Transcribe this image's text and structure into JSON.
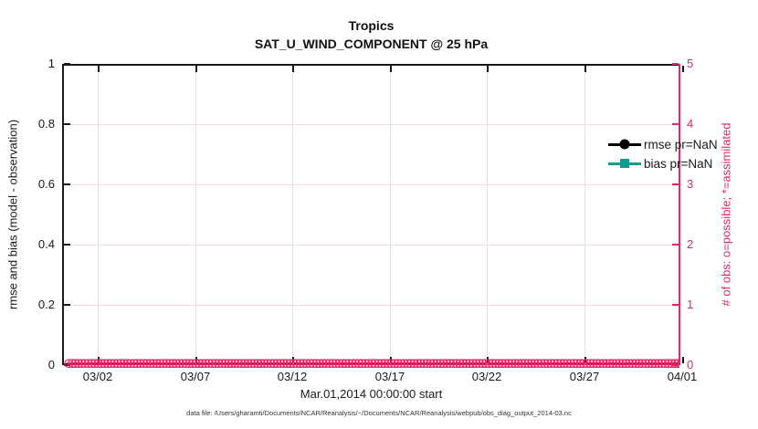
{
  "figure": {
    "title": "Tropics",
    "subtitle": "SAT_U_WIND_COMPONENT @ 25 hPa",
    "xlabel": "Mar.01,2014 00:00:00 start",
    "ylabel_left": "rmse and bias (model - observation)",
    "ylabel_right": "# of obs: o=possible; *=assimilated",
    "footnote": "data file: /Users/gharamti/Documents/NCAR/Reanalysis/~/Documents/NCAR/Reanalysis/webpub/obs_diag_output_2014-03.nc"
  },
  "colors": {
    "axis_black": "#1a1a1a",
    "obs_pink": "#e12765",
    "grid_pink": "#f6d9e3",
    "grid_gray": "#e2e2e2",
    "bias_teal": "#0f9d92",
    "rmse_black": "#000000"
  },
  "legend": {
    "items": [
      {
        "label": "rmse pr=NaN",
        "marker": "circle",
        "color": "#000000"
      },
      {
        "label": "bias pr=NaN",
        "marker": "square",
        "color": "#0f9d92"
      }
    ]
  },
  "chart_data": {
    "type": "line",
    "title": "Tropics",
    "subtitle": "SAT_U_WIND_COMPONENT @ 25 hPa",
    "xlabel": "Mar.01,2014 00:00:00 start",
    "ylabel_left": "rmse and bias (model - observation)",
    "ylabel_right": "# of obs: o=possible; *=assimilated",
    "x_range": [
      "03/01",
      "04/01"
    ],
    "x_tick_labels": [
      "03/02",
      "03/07",
      "03/12",
      "03/17",
      "03/22",
      "03/27",
      "04/01"
    ],
    "y_left_ticks": [
      "0",
      "0.2",
      "0.4",
      "0.6",
      "0.8",
      "1"
    ],
    "y_right_ticks": [
      "0",
      "1",
      "2",
      "3",
      "4",
      "5"
    ],
    "ylim_left": [
      0,
      1
    ],
    "ylim_right": [
      0,
      5
    ],
    "grid": true,
    "legend_position": "top-right-inside",
    "series": [
      {
        "name": "rmse pr=NaN",
        "axis": "left",
        "values": "all NaN - no curve plotted"
      },
      {
        "name": "bias pr=NaN",
        "axis": "left",
        "values": "all NaN - no curve plotted"
      },
      {
        "name": "# of obs possible (o markers)",
        "axis": "right",
        "value_at_every_time": 0
      },
      {
        "name": "# of obs assimilated (* markers)",
        "axis": "right",
        "value_at_every_time": 0
      }
    ],
    "obs_marker_band": {
      "glyph": "⊛",
      "count": 200,
      "y_value": 0
    }
  }
}
